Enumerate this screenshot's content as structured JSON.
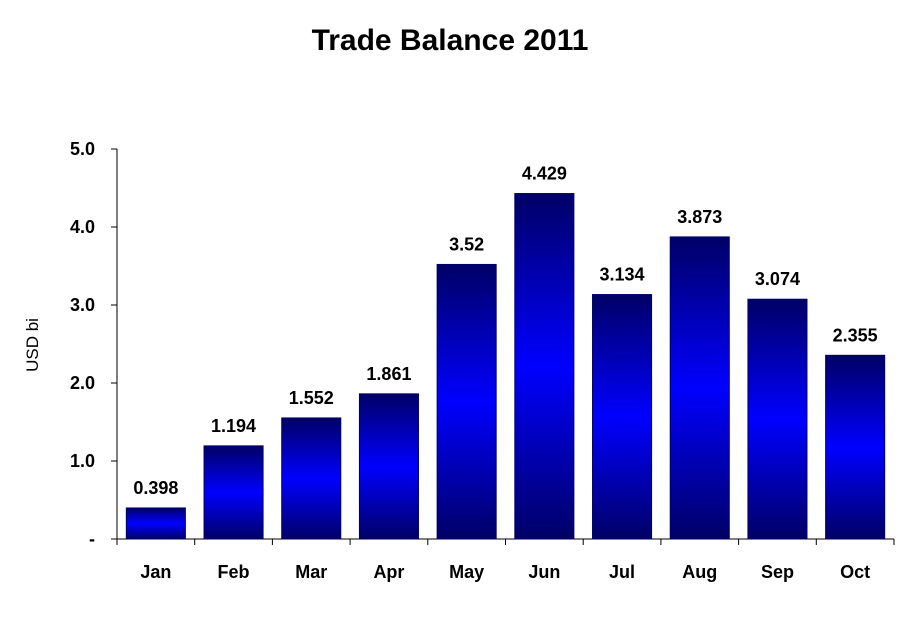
{
  "chart_data": {
    "type": "bar",
    "title": "Trade Balance 2011",
    "xlabel": "",
    "ylabel": "USD bi",
    "categories": [
      "Jan",
      "Feb",
      "Mar",
      "Apr",
      "May",
      "Jun",
      "Jul",
      "Aug",
      "Sep",
      "Oct"
    ],
    "values": [
      0.398,
      1.194,
      1.552,
      1.861,
      3.52,
      4.429,
      3.134,
      3.873,
      3.074,
      2.355
    ],
    "data_labels": [
      "0.398",
      "1.194",
      "1.552",
      "1.861",
      "3.52",
      "4.429",
      "3.134",
      "3.873",
      "3.074",
      "2.355"
    ],
    "ylim": [
      0,
      5
    ],
    "yticks": [
      0,
      1,
      2,
      3,
      4,
      5
    ],
    "ytick_labels": [
      "-",
      "1.0",
      "2.0",
      "3.0",
      "4.0",
      "5.0"
    ],
    "grid": false,
    "legend": "none",
    "colors": {
      "bar_edge": "#000066",
      "bar_center": "#0000ff",
      "axis": "#000000"
    }
  }
}
